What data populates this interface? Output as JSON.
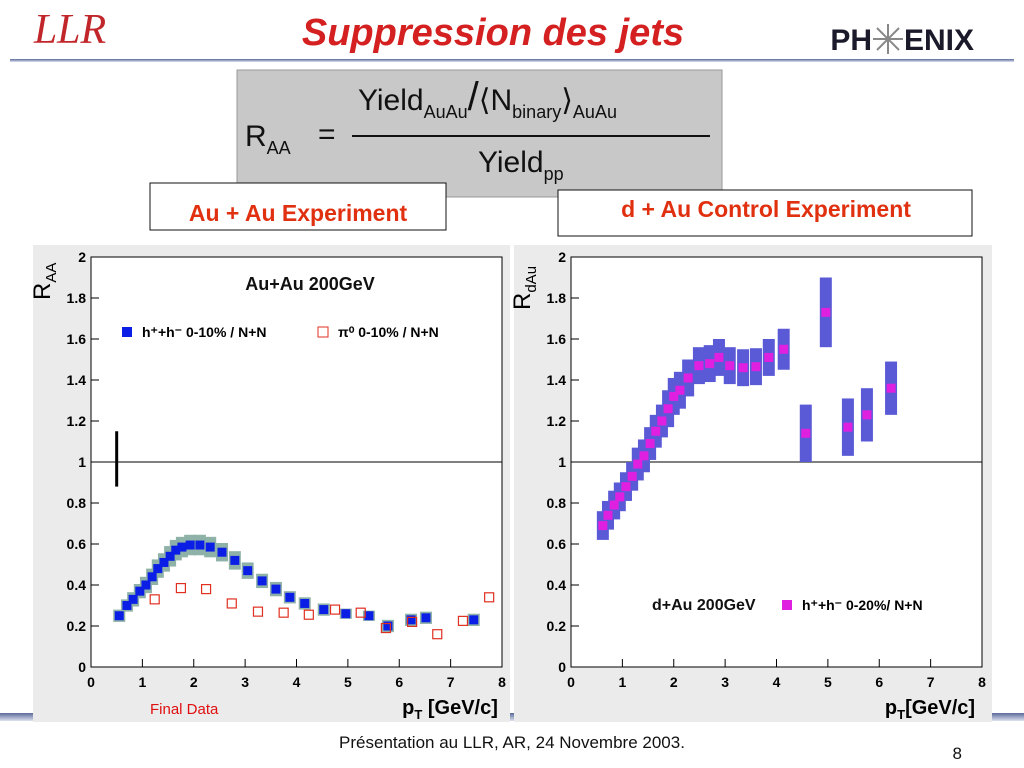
{
  "header": {
    "title": "Suppression des jets",
    "logo_left": "LLR",
    "logo_right": [
      "PH",
      "ENIX"
    ]
  },
  "formula": {
    "lhs": "R",
    "lhs_sub": "AA",
    "eq": "=",
    "num_yield": "Yield",
    "num_yield_sub": "AuAu",
    "slash": "/",
    "open": "⟨",
    "n": "N",
    "n_sub": "binary",
    "close": "⟩",
    "n_outer_sub": "AuAu",
    "den": "Yield",
    "den_sub": "pp"
  },
  "labels": [
    "Au + Au Experiment",
    "d + Au Control Experiment"
  ],
  "footer": {
    "text": "Présentation au LLR, AR, 24 Novembre 2003.",
    "page": "8"
  },
  "chart_data": [
    {
      "type": "scatter",
      "annotations": [
        "Au+Au 200GeV",
        "Final Data"
      ],
      "xlabel": {
        "text": "p",
        "sub": "T",
        "rest": " [GeV/c]"
      },
      "ylabel": {
        "text": "R",
        "sub": "AA"
      },
      "xlim": [
        0,
        8
      ],
      "ylim": [
        0,
        2
      ],
      "xticks": [
        0,
        1,
        2,
        3,
        4,
        5,
        6,
        7,
        8
      ],
      "yticks": [
        0,
        0.2,
        0.4,
        0.6,
        0.8,
        1,
        1.2,
        1.4,
        1.6,
        1.8,
        2
      ],
      "reference_line": 1,
      "norm_error": {
        "x": 0.5,
        "low": 0.88,
        "high": 1.15
      },
      "series": [
        {
          "name": "h⁺+h⁻ 0-10% / N+N",
          "color": "#0a1ee6",
          "marker": "filled-square",
          "band_color": "#8fb2a8",
          "x": [
            0.55,
            0.7,
            0.82,
            0.95,
            1.07,
            1.19,
            1.3,
            1.42,
            1.54,
            1.65,
            1.77,
            1.93,
            2.12,
            2.32,
            2.55,
            2.8,
            3.05,
            3.33,
            3.6,
            3.87,
            4.16,
            4.53,
            4.96,
            5.41,
            5.78,
            6.23,
            6.52,
            7.45
          ],
          "values": [
            0.25,
            0.3,
            0.33,
            0.37,
            0.4,
            0.44,
            0.48,
            0.51,
            0.54,
            0.57,
            0.585,
            0.595,
            0.595,
            0.585,
            0.56,
            0.52,
            0.47,
            0.42,
            0.38,
            0.34,
            0.31,
            0.28,
            0.26,
            0.25,
            0.2,
            0.23,
            0.24,
            0.23
          ],
          "sys": [
            0.03,
            0.03,
            0.035,
            0.035,
            0.04,
            0.04,
            0.045,
            0.045,
            0.05,
            0.05,
            0.05,
            0.05,
            0.05,
            0.05,
            0.045,
            0.045,
            0.04,
            0.035,
            0.035,
            0.03,
            0.03,
            0.03,
            0.025,
            0.025,
            0.03,
            0.03,
            0.03,
            0.03
          ]
        },
        {
          "name": "π⁰ 0-10% / N+N",
          "color": "#e03020",
          "marker": "open-square",
          "x": [
            1.24,
            1.75,
            2.24,
            2.74,
            3.25,
            3.75,
            4.24,
            4.75,
            5.25,
            5.74,
            6.25,
            6.74,
            7.24,
            7.75
          ],
          "values": [
            0.33,
            0.385,
            0.38,
            0.31,
            0.27,
            0.265,
            0.255,
            0.28,
            0.265,
            0.19,
            0.22,
            0.16,
            0.225,
            0.34
          ]
        }
      ]
    },
    {
      "type": "scatter",
      "annotations": [
        "d+Au 200GeV"
      ],
      "xlabel": {
        "text": "p",
        "sub": "T",
        "rest": "[GeV/c]"
      },
      "ylabel": {
        "text": "R",
        "sub": "dAu"
      },
      "xlim": [
        0,
        8
      ],
      "ylim": [
        0,
        2
      ],
      "xticks": [
        0,
        1,
        2,
        3,
        4,
        5,
        6,
        7,
        8
      ],
      "yticks": [
        0,
        0.2,
        0.4,
        0.6,
        0.8,
        1,
        1.2,
        1.4,
        1.6,
        1.8,
        2
      ],
      "reference_line": 1,
      "series": [
        {
          "name": "h⁺+h⁻ 0-20%/ N+N",
          "color": "#e020e0",
          "marker": "filled-square",
          "band_color": "#5a5ad6",
          "x": [
            0.62,
            0.72,
            0.84,
            0.95,
            1.07,
            1.19,
            1.3,
            1.42,
            1.54,
            1.65,
            1.77,
            1.89,
            2.0,
            2.12,
            2.28,
            2.49,
            2.7,
            2.88,
            3.09,
            3.35,
            3.6,
            3.85,
            4.14,
            4.57,
            4.96,
            5.39,
            5.76,
            6.23
          ],
          "values": [
            0.69,
            0.74,
            0.79,
            0.83,
            0.88,
            0.93,
            0.99,
            1.03,
            1.09,
            1.15,
            1.2,
            1.26,
            1.32,
            1.35,
            1.41,
            1.47,
            1.48,
            1.51,
            1.47,
            1.46,
            1.465,
            1.51,
            1.55,
            1.14,
            1.73,
            1.17,
            1.23,
            1.36
          ],
          "sys": [
            0.07,
            0.07,
            0.07,
            0.07,
            0.07,
            0.07,
            0.08,
            0.08,
            0.08,
            0.08,
            0.08,
            0.09,
            0.09,
            0.09,
            0.09,
            0.09,
            0.09,
            0.09,
            0.09,
            0.09,
            0.09,
            0.09,
            0.1,
            0.14,
            0.17,
            0.14,
            0.13,
            0.13
          ]
        }
      ]
    }
  ]
}
